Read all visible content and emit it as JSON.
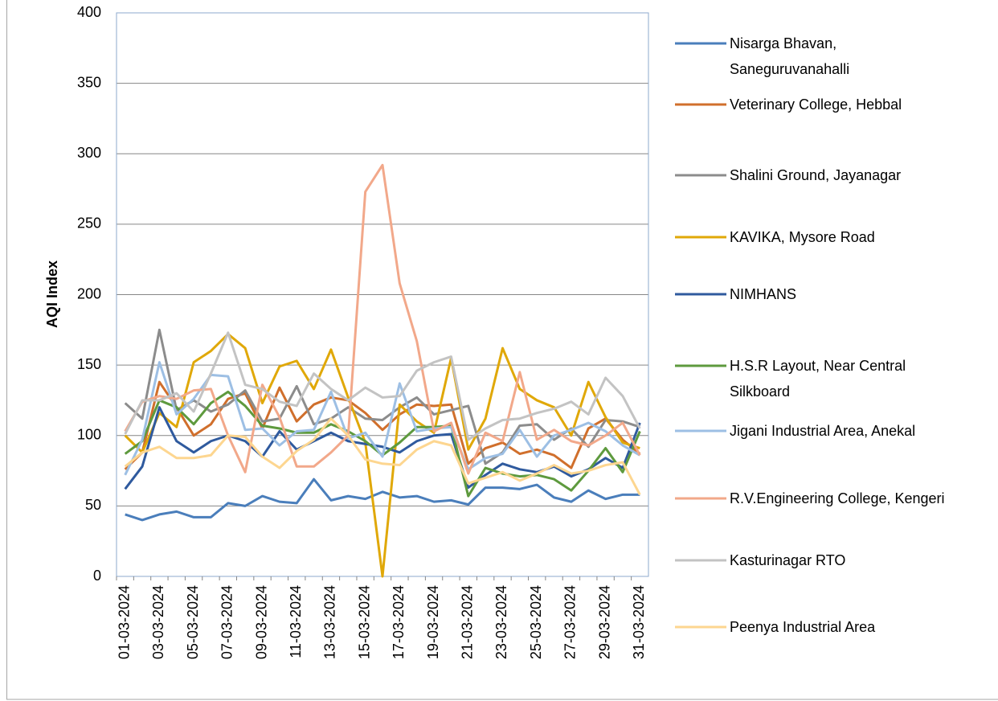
{
  "chart_data": {
    "type": "line",
    "y_label": "AQI Index",
    "categories": [
      "01-03-2024",
      null,
      "03-03-2024",
      null,
      "05-03-2024",
      null,
      "07-03-2024",
      null,
      "09-03-2024",
      null,
      "11-03-2024",
      null,
      "13-03-2024",
      null,
      "15-03-2024",
      null,
      "17-03-2024",
      null,
      "19-03-2024",
      null,
      "21-03-2024",
      null,
      "23-03-2024",
      null,
      "25-03-2024",
      null,
      "27-03-2024",
      null,
      "29-03-2024",
      null,
      "31-03-2024"
    ],
    "ylim": [
      0,
      400
    ],
    "yticks": [
      0,
      50,
      100,
      150,
      200,
      250,
      300,
      350,
      400
    ],
    "grid": true,
    "series": [
      {
        "name": "Nisarga Bhavan, Saneguruvanahalli",
        "color": "#4a7ebb",
        "values": [
          44,
          40,
          44,
          46,
          42,
          42,
          52,
          50,
          57,
          53,
          52,
          69,
          54,
          57,
          55,
          60,
          56,
          57,
          53,
          54,
          51,
          63,
          63,
          62,
          65,
          56,
          53,
          61,
          55,
          58,
          58
        ]
      },
      {
        "name": "Veterinary College, Hebbal",
        "color": "#d06f2c",
        "values": [
          76,
          88,
          138,
          120,
          100,
          108,
          126,
          130,
          105,
          134,
          110,
          122,
          127,
          125,
          116,
          104,
          115,
          122,
          121,
          122,
          80,
          91,
          95,
          87,
          90,
          86,
          77,
          105,
          112,
          97,
          87
        ]
      },
      {
        "name": "Shalini Ground, Jayanagar",
        "color": "#8c8c8c",
        "values": [
          123,
          112,
          175,
          118,
          125,
          117,
          122,
          132,
          110,
          112,
          135,
          108,
          112,
          120,
          112,
          111,
          120,
          127,
          115,
          118,
          121,
          80,
          88,
          107,
          108,
          97,
          105,
          92,
          111,
          110,
          106
        ]
      },
      {
        "name": "KAVIKA, Mysore Road",
        "color": "#e0a808",
        "values": [
          100,
          88,
          116,
          106,
          152,
          160,
          172,
          162,
          123,
          149,
          153,
          133,
          161,
          127,
          95,
          0,
          122,
          110,
          102,
          155,
          90,
          112,
          162,
          133,
          125,
          120,
          100,
          138,
          113,
          95,
          91
        ]
      },
      {
        "name": "NIMHANS",
        "color": "#2f5a9e",
        "values": [
          62,
          78,
          120,
          96,
          88,
          96,
          100,
          96,
          85,
          103,
          90,
          96,
          102,
          96,
          94,
          92,
          88,
          96,
          100,
          101,
          63,
          72,
          80,
          76,
          74,
          78,
          71,
          76,
          84,
          77,
          109
        ]
      },
      {
        "name": "H.S.R Layout, Near Central Silkboard",
        "color": "#5e9a3e",
        "values": [
          87,
          96,
          125,
          120,
          108,
          123,
          131,
          121,
          107,
          105,
          102,
          102,
          108,
          103,
          96,
          86,
          95,
          106,
          106,
          107,
          57,
          77,
          73,
          71,
          72,
          69,
          61,
          75,
          91,
          74,
          103
        ]
      },
      {
        "name": "Jigani Industrial Area, Anekal",
        "color": "#9dbfe4",
        "values": [
          72,
          97,
          152,
          115,
          126,
          143,
          142,
          104,
          105,
          93,
          103,
          104,
          131,
          98,
          102,
          85,
          137,
          103,
          105,
          106,
          76,
          84,
          87,
          104,
          85,
          100,
          104,
          109,
          103,
          93,
          86
        ]
      },
      {
        "name": "R.V.Engineering College, Kengeri",
        "color": "#f2a88a",
        "values": [
          103,
          124,
          128,
          126,
          132,
          133,
          100,
          74,
          136,
          113,
          78,
          78,
          88,
          100,
          273,
          292,
          208,
          167,
          103,
          109,
          73,
          102,
          96,
          145,
          97,
          104,
          96,
          93,
          100,
          109,
          86
        ]
      },
      {
        "name": "Kasturinagar RTO",
        "color": "#c3c3c3",
        "values": [
          101,
          125,
          125,
          130,
          117,
          144,
          173,
          136,
          133,
          124,
          121,
          144,
          133,
          125,
          134,
          127,
          128,
          146,
          152,
          156,
          97,
          105,
          111,
          112,
          116,
          119,
          124,
          115,
          141,
          128,
          105
        ]
      },
      {
        "name": "Peenya Industrial Area",
        "color": "#fdd690",
        "values": [
          78,
          88,
          92,
          84,
          84,
          86,
          100,
          99,
          85,
          77,
          89,
          97,
          112,
          100,
          83,
          80,
          79,
          90,
          96,
          93,
          66,
          70,
          74,
          68,
          73,
          79,
          73,
          75,
          79,
          81,
          58
        ]
      }
    ]
  }
}
